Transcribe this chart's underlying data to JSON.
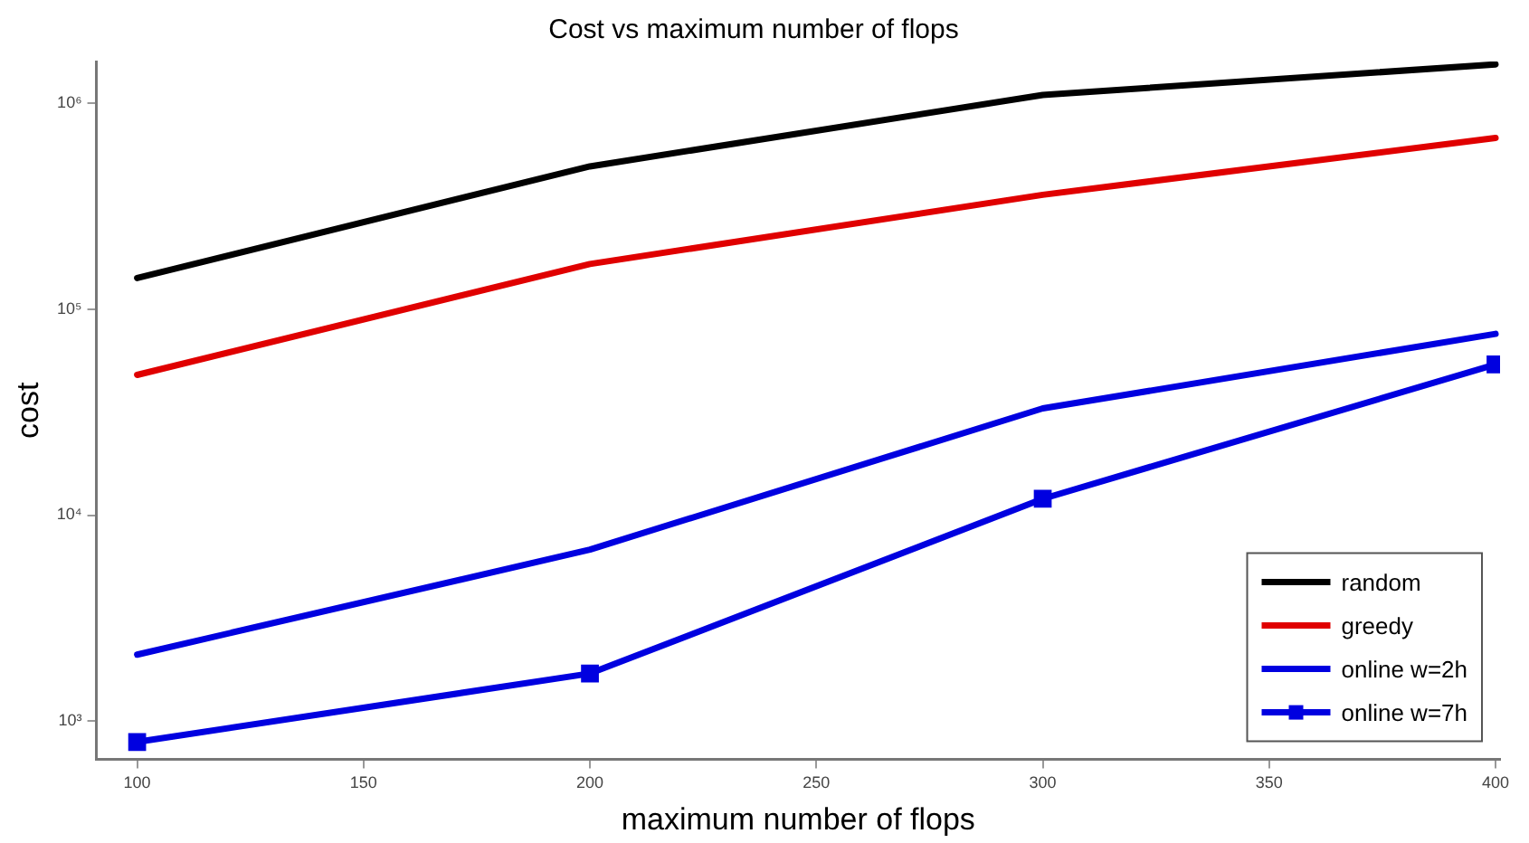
{
  "chart_data": {
    "type": "line",
    "title": "Cost vs maximum number of flops",
    "xlabel": "maximum number of flops",
    "ylabel": "cost",
    "x": [
      100,
      200,
      300,
      400
    ],
    "xlim": [
      91,
      401
    ],
    "xticks": [
      100,
      150,
      200,
      250,
      300,
      350,
      400
    ],
    "log": "y",
    "ylim": [
      650,
      1600000
    ],
    "yticks": [
      {
        "value": 1000,
        "label": "10³"
      },
      {
        "value": 10000,
        "label": "10⁴"
      },
      {
        "value": 100000,
        "label": "10⁵"
      },
      {
        "value": 1000000,
        "label": "10⁶"
      }
    ],
    "grid": false,
    "legend": "bottom right",
    "line_style": "solid",
    "series": [
      {
        "name": "random",
        "color": "#000000",
        "values": [
          142000,
          495000,
          1100000,
          1550000
        ],
        "marker": "none"
      },
      {
        "name": "greedy",
        "color": "#e00000",
        "values": [
          48000,
          166000,
          360000,
          680000
        ],
        "marker": "none"
      },
      {
        "name": "online w=2h",
        "color": "#0000e0",
        "values": [
          2100,
          6800,
          33000,
          76000
        ],
        "marker": "none"
      },
      {
        "name": "online w=7h",
        "color": "#0000e0",
        "values": [
          790,
          1700,
          12000,
          54000
        ],
        "marker": "square"
      }
    ]
  }
}
